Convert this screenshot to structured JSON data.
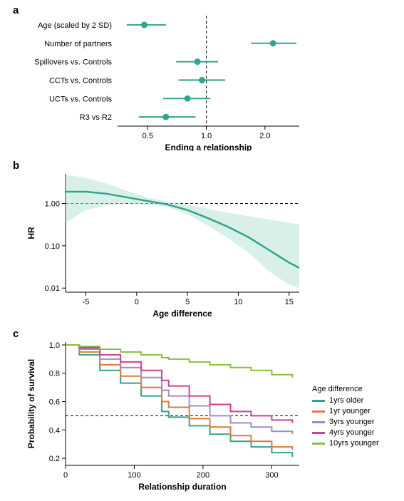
{
  "panelA": {
    "label": "a",
    "type": "forest",
    "xlabel": "Ending a relationship",
    "xscale": "log",
    "xticks": [
      0.5,
      1.0,
      2.0
    ],
    "xmin": 0.35,
    "xmax": 3.0,
    "ref": 1.0,
    "point_color": "#2fa58e",
    "tick_fontsize": 11,
    "label_fontsize": 12,
    "cat_fontsize": 11,
    "items": [
      {
        "label": "Age (scaled by 2 SD)",
        "est": 0.48,
        "lo": 0.39,
        "hi": 0.62
      },
      {
        "label": "Number of partners",
        "est": 2.2,
        "lo": 1.7,
        "hi": 2.9
      },
      {
        "label": "Spillovers vs. Controls",
        "est": 0.9,
        "lo": 0.7,
        "hi": 1.15
      },
      {
        "label": "CCTs vs. Controls",
        "est": 0.95,
        "lo": 0.72,
        "hi": 1.25
      },
      {
        "label": "UCTs vs. Controls",
        "est": 0.8,
        "lo": 0.6,
        "hi": 1.05
      },
      {
        "label": "R3 vs R2",
        "est": 0.62,
        "lo": 0.45,
        "hi": 0.88
      }
    ]
  },
  "panelB": {
    "label": "b",
    "type": "spline",
    "xlabel": "Age difference",
    "ylabel": "HR",
    "yscale": "log",
    "xticks": [
      -5,
      0,
      5,
      10,
      15
    ],
    "yticks": [
      0.01,
      0.1,
      1.0
    ],
    "xmin": -7,
    "xmax": 16,
    "ymin": 0.008,
    "ymax": 5,
    "ref": 1.0,
    "line_color": "#2fa58e",
    "band_color": "#b9e3d7",
    "line_width": 2.5,
    "tick_fontsize": 11,
    "label_fontsize": 12,
    "curve": [
      {
        "x": -7,
        "y": 1.9,
        "lo": 0.35,
        "hi": 4.8
      },
      {
        "x": -5,
        "y": 1.9,
        "lo": 0.7,
        "hi": 4.0
      },
      {
        "x": -3,
        "y": 1.7,
        "lo": 0.9,
        "hi": 3.0
      },
      {
        "x": -1,
        "y": 1.4,
        "lo": 1.0,
        "hi": 2.0
      },
      {
        "x": 1,
        "y": 1.15,
        "lo": 0.95,
        "hi": 1.4
      },
      {
        "x": 3,
        "y": 0.95,
        "lo": 0.85,
        "hi": 1.1
      },
      {
        "x": 5,
        "y": 0.7,
        "lo": 0.55,
        "hi": 0.95
      },
      {
        "x": 7,
        "y": 0.45,
        "lo": 0.3,
        "hi": 0.75
      },
      {
        "x": 9,
        "y": 0.28,
        "lo": 0.15,
        "hi": 0.6
      },
      {
        "x": 11,
        "y": 0.16,
        "lo": 0.07,
        "hi": 0.5
      },
      {
        "x": 13,
        "y": 0.08,
        "lo": 0.025,
        "hi": 0.42
      },
      {
        "x": 15,
        "y": 0.04,
        "lo": 0.012,
        "hi": 0.35
      },
      {
        "x": 16,
        "y": 0.03,
        "lo": 0.01,
        "hi": 0.32
      }
    ]
  },
  "panelC": {
    "label": "c",
    "type": "survival",
    "xlabel": "Relationship duration",
    "ylabel": "Probability of survival",
    "xticks": [
      0,
      100,
      200,
      300
    ],
    "yticks": [
      0.2,
      0.4,
      0.6,
      0.8,
      1.0
    ],
    "xmin": 0,
    "xmax": 340,
    "ymin": 0.15,
    "ymax": 1.02,
    "ref": 0.5,
    "tick_fontsize": 11,
    "label_fontsize": 12,
    "legend_title": "Age difference",
    "line_width": 2,
    "series": [
      {
        "name": "1yrs older",
        "color": "#2fa58e",
        "pts": [
          [
            0,
            1.0
          ],
          [
            20,
            0.93
          ],
          [
            50,
            0.82
          ],
          [
            80,
            0.73
          ],
          [
            110,
            0.64
          ],
          [
            140,
            0.53
          ],
          [
            150,
            0.49
          ],
          [
            180,
            0.43
          ],
          [
            210,
            0.37
          ],
          [
            240,
            0.32
          ],
          [
            270,
            0.28
          ],
          [
            300,
            0.24
          ],
          [
            330,
            0.21
          ]
        ]
      },
      {
        "name": "1yr younger",
        "color": "#e07b39",
        "pts": [
          [
            0,
            1.0
          ],
          [
            20,
            0.95
          ],
          [
            50,
            0.86
          ],
          [
            80,
            0.78
          ],
          [
            110,
            0.7
          ],
          [
            140,
            0.6
          ],
          [
            150,
            0.56
          ],
          [
            180,
            0.48
          ],
          [
            210,
            0.42
          ],
          [
            240,
            0.36
          ],
          [
            270,
            0.32
          ],
          [
            300,
            0.28
          ],
          [
            330,
            0.26
          ]
        ]
      },
      {
        "name": "3yrs younger",
        "color": "#9b8ec8",
        "pts": [
          [
            0,
            1.0
          ],
          [
            20,
            0.97
          ],
          [
            50,
            0.9
          ],
          [
            80,
            0.84
          ],
          [
            110,
            0.77
          ],
          [
            140,
            0.68
          ],
          [
            150,
            0.64
          ],
          [
            180,
            0.57
          ],
          [
            210,
            0.5
          ],
          [
            240,
            0.45
          ],
          [
            270,
            0.42
          ],
          [
            300,
            0.39
          ],
          [
            330,
            0.37
          ]
        ]
      },
      {
        "name": "4yrs younger",
        "color": "#d13f8c",
        "pts": [
          [
            0,
            1.0
          ],
          [
            20,
            0.98
          ],
          [
            50,
            0.93
          ],
          [
            80,
            0.88
          ],
          [
            110,
            0.82
          ],
          [
            140,
            0.75
          ],
          [
            150,
            0.71
          ],
          [
            180,
            0.64
          ],
          [
            210,
            0.58
          ],
          [
            240,
            0.53
          ],
          [
            270,
            0.5
          ],
          [
            300,
            0.47
          ],
          [
            330,
            0.45
          ]
        ]
      },
      {
        "name": "10yrs younger",
        "color": "#8bbf3f",
        "pts": [
          [
            0,
            1.0
          ],
          [
            20,
            0.99
          ],
          [
            50,
            0.97
          ],
          [
            80,
            0.95
          ],
          [
            110,
            0.93
          ],
          [
            140,
            0.91
          ],
          [
            150,
            0.9
          ],
          [
            180,
            0.88
          ],
          [
            210,
            0.86
          ],
          [
            240,
            0.84
          ],
          [
            270,
            0.82
          ],
          [
            300,
            0.79
          ],
          [
            330,
            0.77
          ]
        ]
      }
    ]
  }
}
